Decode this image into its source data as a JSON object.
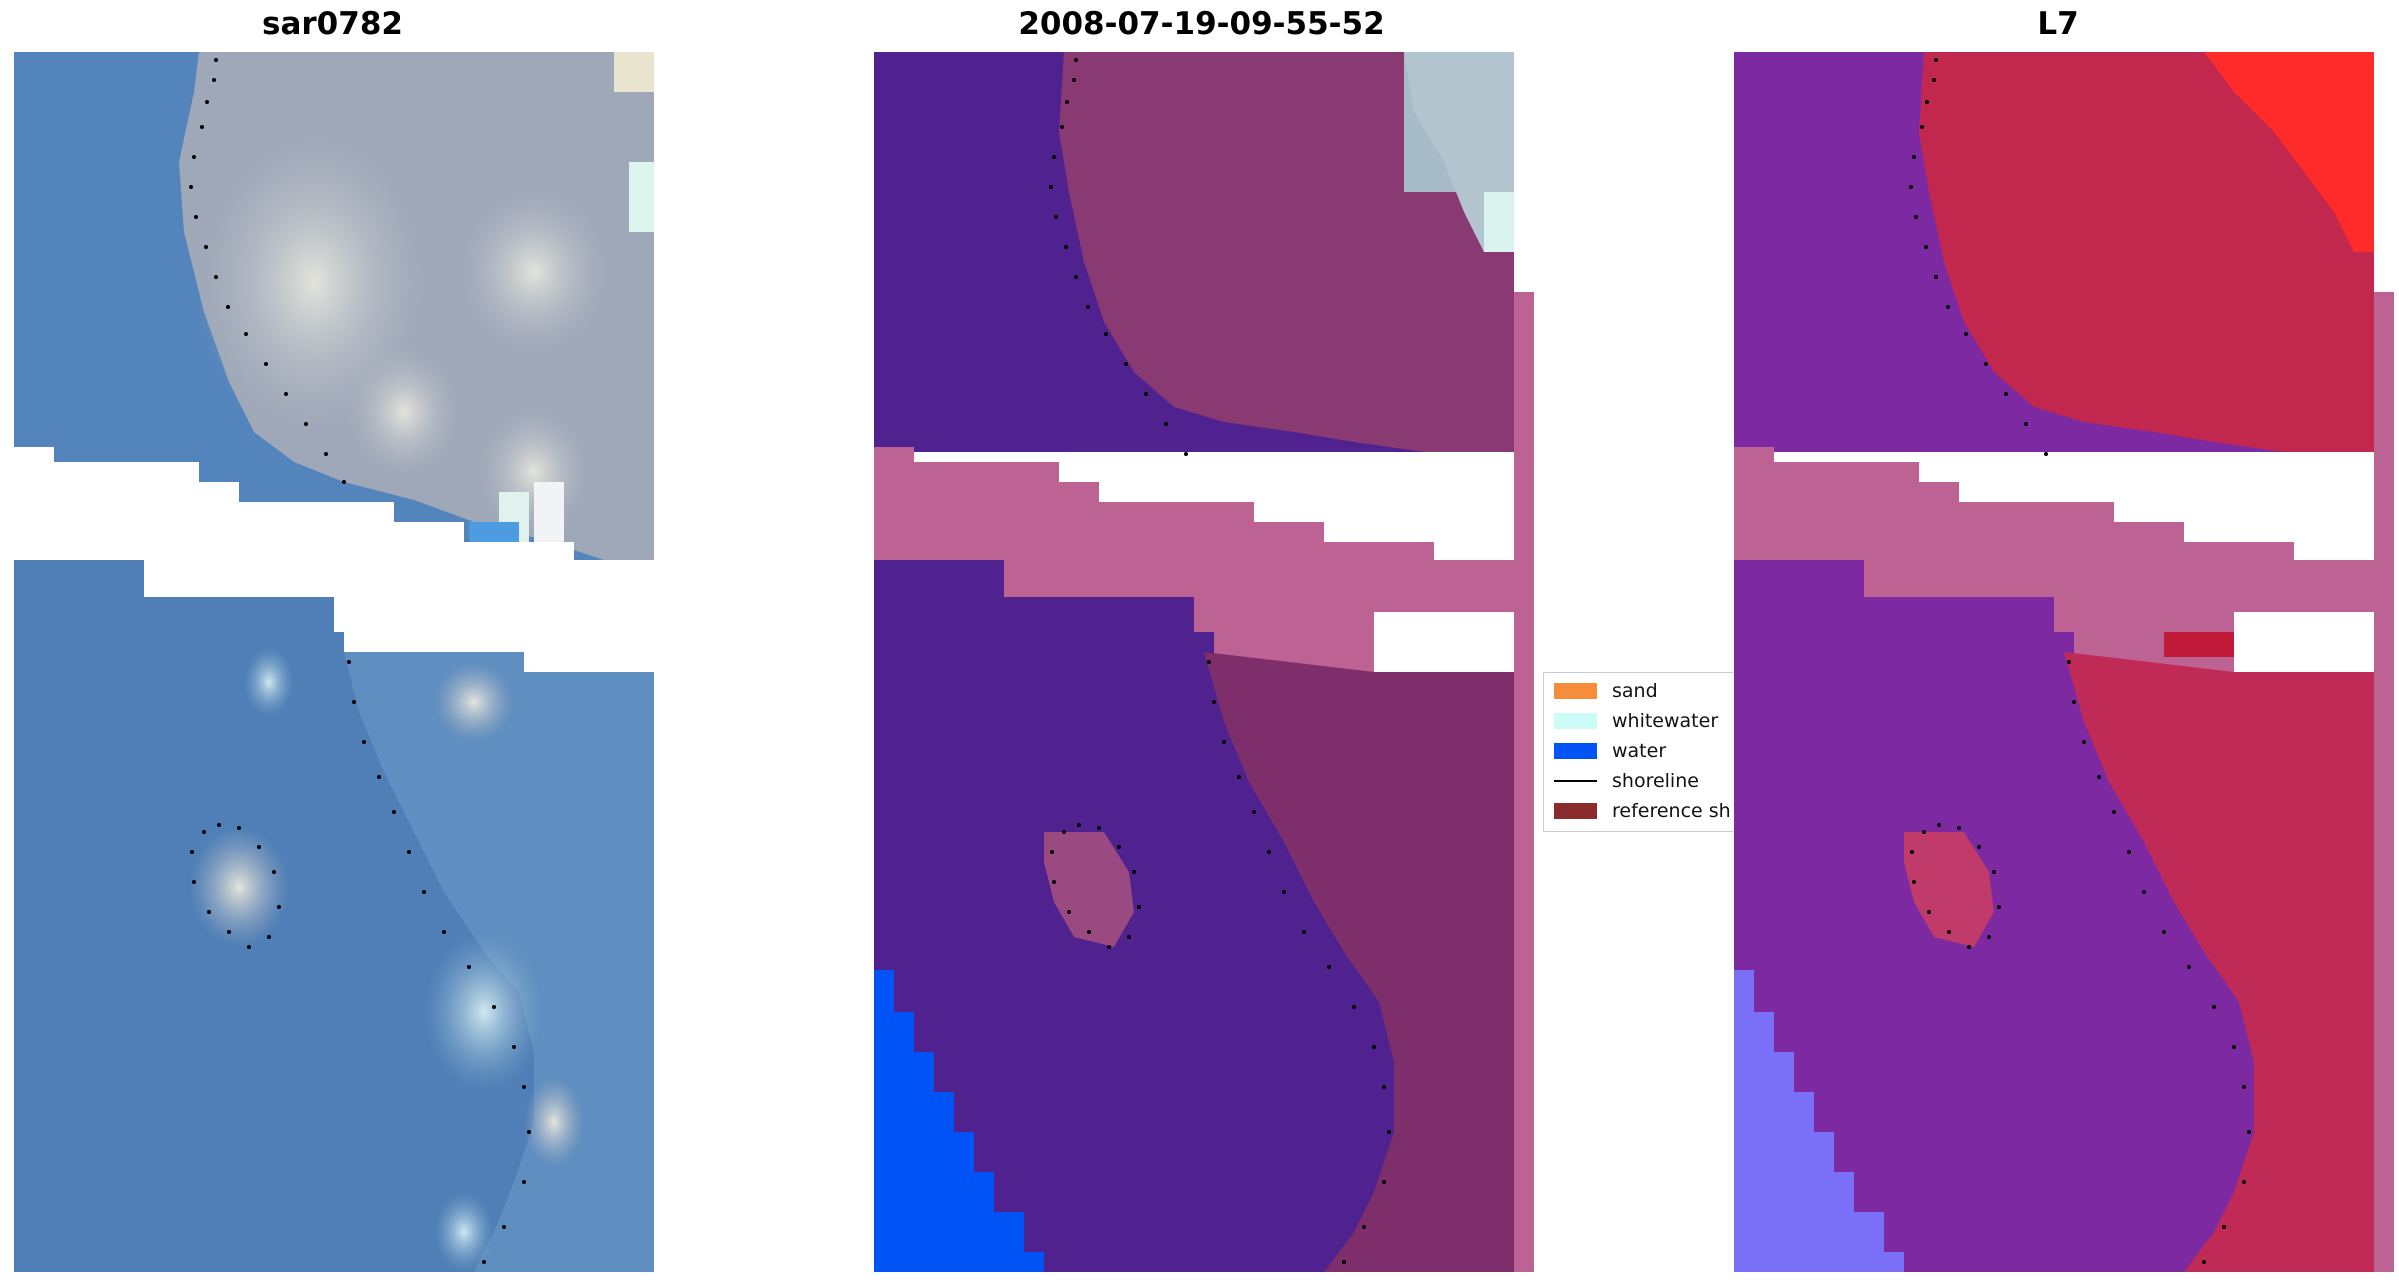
{
  "panels": [
    {
      "title": "sar0782"
    },
    {
      "title": "2008-07-19-09-55-52"
    },
    {
      "title": "L7"
    }
  ],
  "legend": {
    "items": [
      {
        "label": "sand",
        "color": "#f58d3a"
      },
      {
        "label": "whitewater",
        "color": "#ccfcf8"
      },
      {
        "label": "water",
        "color": "#0054f5"
      },
      {
        "label": "shoreline",
        "color": "#000000"
      },
      {
        "label": "reference sh",
        "color": "#8b2a2a"
      }
    ]
  },
  "colors": {
    "rgb_water": "#4f83b8",
    "rgb_land": "#9ba6b8",
    "class_water_overlay": "#50228f",
    "class_land_overlay": "#8a3a72",
    "nodata_band": "#bd6394",
    "water_class": "#0054f5",
    "index_water": "#7d2aa2",
    "index_land": "#c2284e",
    "index_bright": "#ff2a2a"
  }
}
